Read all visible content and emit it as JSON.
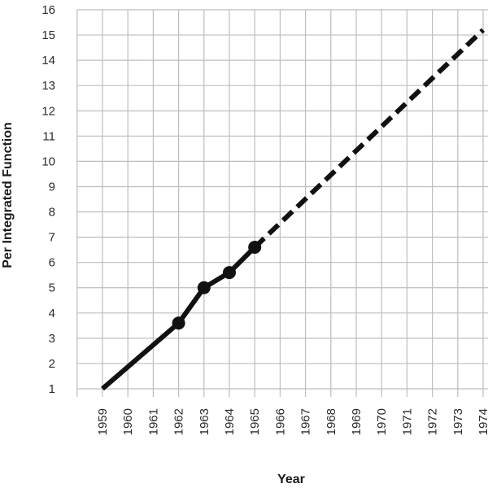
{
  "chart_data": {
    "type": "line",
    "title": "",
    "xlabel": "Year",
    "ylabel": "Per Integrated Function",
    "x_categories": [
      "1959",
      "1960",
      "1961",
      "1962",
      "1963",
      "1964",
      "1965",
      "1966",
      "1967",
      "1968",
      "1969",
      "1970",
      "1971",
      "1972",
      "1973",
      "1974"
    ],
    "ylim": [
      1,
      16
    ],
    "y_ticks": [
      "16",
      "15",
      "14",
      "13",
      "12",
      "11",
      "10",
      "9",
      "8",
      "7",
      "6",
      "5",
      "4",
      "3",
      "2",
      "1"
    ],
    "grid": true,
    "legend": "none",
    "series": [
      {
        "style": "solid",
        "color": "#111111",
        "points": [
          {
            "x": 1959,
            "y": 1.0
          },
          {
            "x": 1962,
            "y": 3.6
          },
          {
            "x": 1963,
            "y": 5.0
          },
          {
            "x": 1964,
            "y": 5.6
          },
          {
            "x": 1965,
            "y": 6.6
          }
        ],
        "marked_x": [
          1962,
          1963,
          1964,
          1965
        ]
      },
      {
        "style": "dashed",
        "color": "#111111",
        "points": [
          {
            "x": 1965,
            "y": 6.6
          },
          {
            "x": 1974,
            "y": 15.2
          }
        ]
      }
    ]
  }
}
